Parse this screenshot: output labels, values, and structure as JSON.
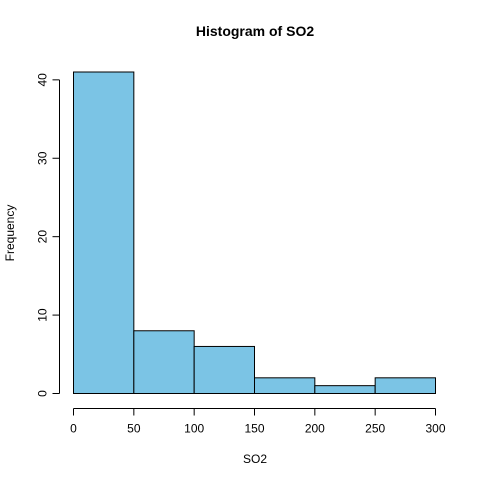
{
  "chart_data": {
    "type": "bar",
    "title": "Histogram of SO2",
    "xlabel": "SO2",
    "ylabel": "Frequency",
    "bins": [
      {
        "start": 0,
        "end": 50,
        "count": 41
      },
      {
        "start": 50,
        "end": 100,
        "count": 8
      },
      {
        "start": 100,
        "end": 150,
        "count": 6
      },
      {
        "start": 150,
        "end": 200,
        "count": 2
      },
      {
        "start": 200,
        "end": 250,
        "count": 1
      },
      {
        "start": 250,
        "end": 300,
        "count": 2
      }
    ],
    "xlim": [
      0,
      300
    ],
    "ylim": [
      0,
      41
    ],
    "xticks": [
      0,
      50,
      100,
      150,
      200,
      250,
      300
    ],
    "yticks": [
      0,
      10,
      20,
      30,
      40
    ],
    "bar_color": "#7bc4e5",
    "grid": false
  }
}
